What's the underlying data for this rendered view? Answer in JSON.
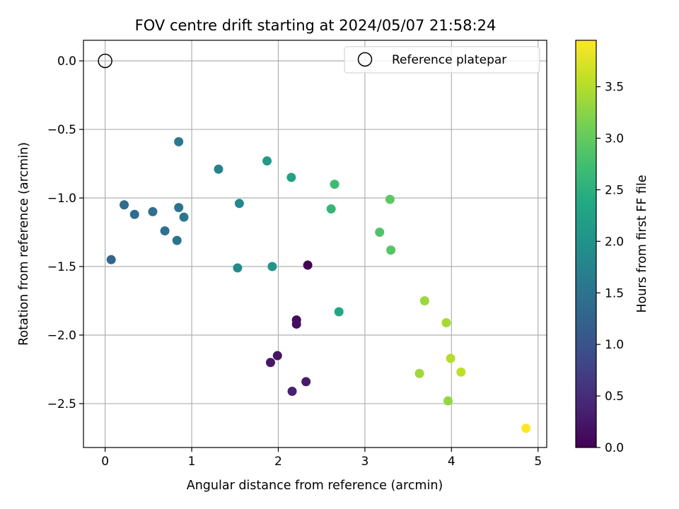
{
  "chart_data": {
    "type": "scatter",
    "title": "FOV centre drift starting at 2024/05/07 21:58:24",
    "xlabel": "Angular distance from reference (arcmin)",
    "ylabel": "Rotation from reference (arcmin)",
    "xlim": [
      -0.25,
      5.1
    ],
    "ylim": [
      -2.82,
      0.15
    ],
    "xticks": [
      0,
      1,
      2,
      3,
      4,
      5
    ],
    "xtick_labels": [
      "0",
      "1",
      "2",
      "3",
      "4",
      "5"
    ],
    "yticks": [
      0.0,
      -0.5,
      -1.0,
      -1.5,
      -2.0,
      -2.5
    ],
    "ytick_labels": [
      "0.0",
      "−0.5",
      "−1.0",
      "−1.5",
      "−2.0",
      "−2.5"
    ],
    "grid": true,
    "legend": {
      "placement": "top-right",
      "entries": [
        "Reference platepar"
      ]
    },
    "reference_point": {
      "x": 0,
      "y": 0,
      "marker": "open-circle"
    },
    "colorbar": {
      "label": "Hours from first FF file",
      "colormap": "viridis",
      "range": [
        0,
        3.95
      ],
      "ticks": [
        0.0,
        0.5,
        1.0,
        1.5,
        2.0,
        2.5,
        3.0,
        3.5
      ],
      "tick_labels": [
        "0.0",
        "0.5",
        "1.0",
        "1.5",
        "2.0",
        "2.5",
        "3.0",
        "3.5"
      ]
    },
    "series": [
      {
        "points": [
          {
            "x": 2.34,
            "y": -1.49,
            "c": 0.0
          },
          {
            "x": 2.21,
            "y": -1.89,
            "c": 0.1
          },
          {
            "x": 2.21,
            "y": -1.92,
            "c": 0.15
          },
          {
            "x": 1.99,
            "y": -2.15,
            "c": 0.2
          },
          {
            "x": 1.91,
            "y": -2.2,
            "c": 0.25
          },
          {
            "x": 2.32,
            "y": -2.34,
            "c": 0.3
          },
          {
            "x": 2.16,
            "y": -2.41,
            "c": 0.35
          },
          {
            "x": 0.07,
            "y": -1.45,
            "c": 1.3
          },
          {
            "x": 0.22,
            "y": -1.05,
            "c": 1.4
          },
          {
            "x": 0.34,
            "y": -1.12,
            "c": 1.42
          },
          {
            "x": 0.55,
            "y": -1.1,
            "c": 1.45
          },
          {
            "x": 0.69,
            "y": -1.24,
            "c": 1.47
          },
          {
            "x": 0.83,
            "y": -1.31,
            "c": 1.5
          },
          {
            "x": 0.85,
            "y": -1.07,
            "c": 1.52
          },
          {
            "x": 0.91,
            "y": -1.14,
            "c": 1.55
          },
          {
            "x": 0.85,
            "y": -0.59,
            "c": 1.6
          },
          {
            "x": 1.31,
            "y": -0.79,
            "c": 1.75
          },
          {
            "x": 1.55,
            "y": -1.04,
            "c": 1.82
          },
          {
            "x": 1.53,
            "y": -1.51,
            "c": 1.88
          },
          {
            "x": 1.93,
            "y": -1.5,
            "c": 2.05
          },
          {
            "x": 1.87,
            "y": -0.73,
            "c": 2.15
          },
          {
            "x": 2.15,
            "y": -0.85,
            "c": 2.25
          },
          {
            "x": 2.7,
            "y": -1.83,
            "c": 2.35
          },
          {
            "x": 2.61,
            "y": -1.08,
            "c": 2.6
          },
          {
            "x": 2.65,
            "y": -0.9,
            "c": 2.7
          },
          {
            "x": 3.17,
            "y": -1.25,
            "c": 2.85
          },
          {
            "x": 3.3,
            "y": -1.38,
            "c": 2.9
          },
          {
            "x": 3.29,
            "y": -1.01,
            "c": 2.95
          },
          {
            "x": 3.69,
            "y": -1.75,
            "c": 3.35
          },
          {
            "x": 3.63,
            "y": -2.28,
            "c": 3.38
          },
          {
            "x": 3.94,
            "y": -1.91,
            "c": 3.42
          },
          {
            "x": 3.96,
            "y": -2.48,
            "c": 3.3
          },
          {
            "x": 3.99,
            "y": -2.17,
            "c": 3.5
          },
          {
            "x": 4.11,
            "y": -2.27,
            "c": 3.55
          },
          {
            "x": 4.86,
            "y": -2.68,
            "c": 3.95
          }
        ]
      }
    ]
  }
}
